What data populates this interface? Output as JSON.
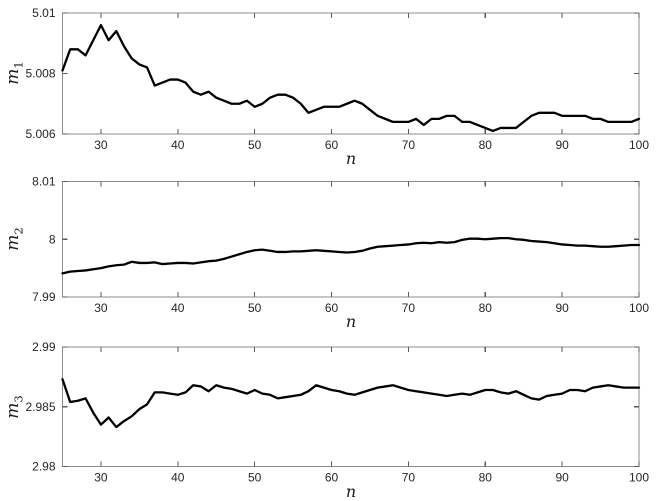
{
  "figure": {
    "background": "#ffffff",
    "axis_color": "#8c8c8c",
    "tick_color": "#595959",
    "text_color": "#262626",
    "series_color": "#000000"
  },
  "chart_data": [
    {
      "type": "line",
      "title": "",
      "xlabel": "n",
      "ylabel": {
        "hat": "ˆ",
        "var": "m",
        "sub": "1"
      },
      "xlim": [
        25,
        100
      ],
      "ylim": [
        5.006,
        5.01
      ],
      "xticks": [
        30,
        40,
        50,
        60,
        70,
        80,
        90,
        100
      ],
      "xtick_labels": [
        "30",
        "40",
        "50",
        "60",
        "70",
        "80",
        "90",
        "100"
      ],
      "yticks": [
        5.006,
        5.008,
        5.01
      ],
      "ytick_labels": [
        "5.006",
        "5.008",
        "5.01"
      ],
      "grid": false,
      "legend": null,
      "x_start": 25,
      "x_step": 1,
      "values": [
        5.0081,
        5.0088,
        5.0088,
        5.0086,
        5.0091,
        5.0096,
        5.0091,
        5.0094,
        5.0089,
        5.0085,
        5.0083,
        5.0082,
        5.0076,
        5.0077,
        5.0078,
        5.0078,
        5.0077,
        5.0074,
        5.0073,
        5.0074,
        5.0072,
        5.0071,
        5.007,
        5.007,
        5.0071,
        5.0069,
        5.007,
        5.0072,
        5.0073,
        5.0073,
        5.0072,
        5.007,
        5.0067,
        5.0068,
        5.0069,
        5.0069,
        5.0069,
        5.007,
        5.0071,
        5.007,
        5.0068,
        5.0066,
        5.0065,
        5.0064,
        5.0064,
        5.0064,
        5.0065,
        5.0063,
        5.0065,
        5.0065,
        5.0066,
        5.0066,
        5.0064,
        5.0064,
        5.0063,
        5.0062,
        5.0061,
        5.0062,
        5.0062,
        5.0062,
        5.0064,
        5.0066,
        5.0067,
        5.0067,
        5.0067,
        5.0066,
        5.0066,
        5.0066,
        5.0066,
        5.0065,
        5.0065,
        5.0064,
        5.0064,
        5.0064,
        5.0064,
        5.0065
      ]
    },
    {
      "type": "line",
      "title": "",
      "xlabel": "n",
      "ylabel": {
        "hat": "ˆ",
        "var": "m",
        "sub": "2"
      },
      "xlim": [
        25,
        100
      ],
      "ylim": [
        7.99,
        8.01
      ],
      "xticks": [
        30,
        40,
        50,
        60,
        70,
        80,
        90,
        100
      ],
      "xtick_labels": [
        "30",
        "40",
        "50",
        "60",
        "70",
        "80",
        "90",
        "100"
      ],
      "yticks": [
        7.99,
        8,
        8.01
      ],
      "ytick_labels": [
        "7.99",
        "8",
        "8.01"
      ],
      "grid": false,
      "legend": null,
      "x_start": 25,
      "x_step": 1,
      "values": [
        7.9941,
        7.9944,
        7.9945,
        7.9946,
        7.9948,
        7.995,
        7.9953,
        7.9955,
        7.9956,
        7.9961,
        7.9959,
        7.9959,
        7.996,
        7.9957,
        7.9958,
        7.9959,
        7.9959,
        7.9958,
        7.996,
        7.9962,
        7.9963,
        7.9966,
        7.997,
        7.9974,
        7.9978,
        7.9981,
        7.9982,
        7.998,
        7.9978,
        7.9978,
        7.9979,
        7.9979,
        7.998,
        7.9981,
        7.998,
        7.9979,
        7.9978,
        7.9977,
        7.9978,
        7.998,
        7.9984,
        7.9987,
        7.9988,
        7.9989,
        7.999,
        7.9991,
        7.9993,
        7.9994,
        7.9993,
        7.9995,
        7.9994,
        7.9995,
        7.9999,
        8.0001,
        8.0001,
        8.0,
        8.0001,
        8.0002,
        8.0002,
        8.0,
        7.9999,
        7.9997,
        7.9996,
        7.9995,
        7.9993,
        7.9991,
        7.999,
        7.9989,
        7.9989,
        7.9988,
        7.9987,
        7.9987,
        7.9988,
        7.9989,
        7.999,
        7.999
      ]
    },
    {
      "type": "line",
      "title": "",
      "xlabel": "n",
      "ylabel": {
        "hat": "ˆ",
        "var": "m",
        "sub": "3"
      },
      "xlim": [
        25,
        100
      ],
      "ylim": [
        2.98,
        2.99
      ],
      "xticks": [
        30,
        40,
        50,
        60,
        70,
        80,
        90,
        100
      ],
      "xtick_labels": [
        "30",
        "40",
        "50",
        "60",
        "70",
        "80",
        "90",
        "100"
      ],
      "yticks": [
        2.98,
        2.985,
        2.99
      ],
      "ytick_labels": [
        "2.98",
        "2.985",
        "2.99"
      ],
      "grid": false,
      "legend": null,
      "x_start": 25,
      "x_step": 1,
      "values": [
        2.9873,
        2.9854,
        2.9855,
        2.9857,
        2.9845,
        2.9835,
        2.9841,
        2.9833,
        2.9838,
        2.9842,
        2.9848,
        2.9852,
        2.9862,
        2.9862,
        2.9861,
        2.986,
        2.9862,
        2.9868,
        2.9867,
        2.9863,
        2.9868,
        2.9866,
        2.9865,
        2.9863,
        2.9861,
        2.9864,
        2.9861,
        2.986,
        2.9857,
        2.9858,
        2.9859,
        2.986,
        2.9863,
        2.9868,
        2.9866,
        2.9864,
        2.9863,
        2.9861,
        2.986,
        2.9862,
        2.9864,
        2.9866,
        2.9867,
        2.9868,
        2.9866,
        2.9864,
        2.9863,
        2.9862,
        2.9861,
        2.986,
        2.9859,
        2.986,
        2.9861,
        2.986,
        2.9862,
        2.9864,
        2.9864,
        2.9862,
        2.9861,
        2.9863,
        2.986,
        2.9857,
        2.9856,
        2.9859,
        2.986,
        2.9861,
        2.9864,
        2.9864,
        2.9863,
        2.9866,
        2.9867,
        2.9868,
        2.9867,
        2.9866,
        2.9866,
        2.9866
      ]
    }
  ]
}
